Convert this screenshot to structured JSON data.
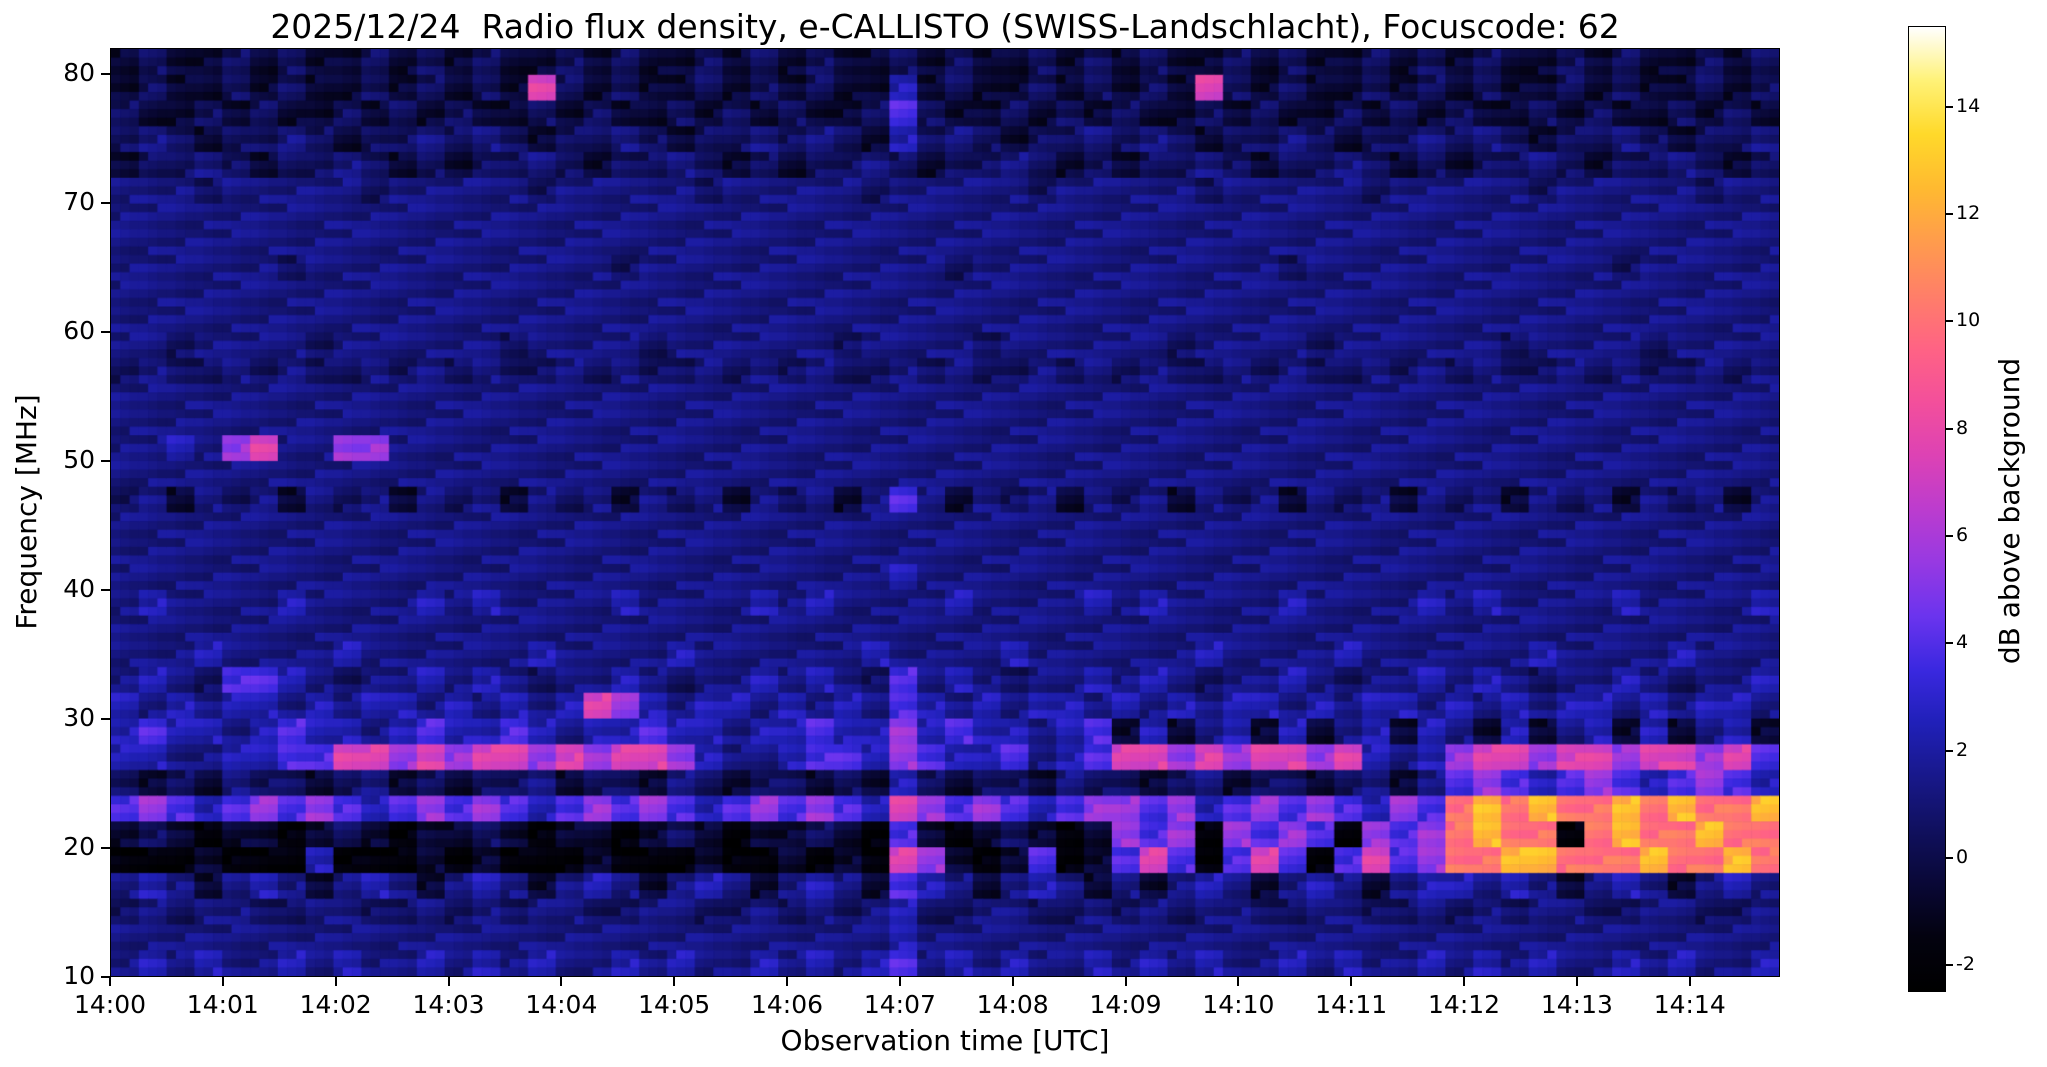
{
  "title": "2025/12/24  Radio flux density, e-CALLISTO (SWISS-Landschlacht), Focuscode: 62",
  "colors": {
    "background": "#ffffff",
    "text": "#000000",
    "plot_background_blue": "#15156e"
  },
  "chart_data": {
    "type": "heatmap",
    "title": "2025/12/24  Radio flux density, e-CALLISTO (SWISS-Landschlacht), Focuscode: 62",
    "xlabel": "Observation time [UTC]",
    "ylabel": "Frequency [MHz]",
    "x_ticks": [
      "14:00",
      "14:01",
      "14:02",
      "14:03",
      "14:04",
      "14:05",
      "14:06",
      "14:07",
      "14:08",
      "14:09",
      "14:10",
      "14:11",
      "14:12",
      "14:13",
      "14:14"
    ],
    "x_range_minutes": [
      0,
      14.8
    ],
    "y_ticks": [
      80,
      70,
      60,
      50,
      40,
      30,
      20,
      10
    ],
    "y_range_mhz": [
      10,
      82
    ],
    "grid": "off",
    "legend": "none",
    "colorbar": {
      "label": "dB above background",
      "ticks": [
        14,
        12,
        10,
        8,
        6,
        4,
        2,
        0,
        -2
      ],
      "range": [
        -2.5,
        15.5
      ],
      "position": "right",
      "colormap_stops": [
        {
          "v": -2.5,
          "c": "#000000"
        },
        {
          "v": -1.5,
          "c": "#03020f"
        },
        {
          "v": -0.5,
          "c": "#090836"
        },
        {
          "v": 0.5,
          "c": "#10105e"
        },
        {
          "v": 1.5,
          "c": "#18188a"
        },
        {
          "v": 2.5,
          "c": "#2020b8"
        },
        {
          "v": 3.5,
          "c": "#3a28e0"
        },
        {
          "v": 4.5,
          "c": "#6b34ee"
        },
        {
          "v": 5.5,
          "c": "#9739e2"
        },
        {
          "v": 6.5,
          "c": "#bc3cce"
        },
        {
          "v": 7.5,
          "c": "#dd42b4"
        },
        {
          "v": 8.5,
          "c": "#f34f9b"
        },
        {
          "v": 9.5,
          "c": "#ff6384"
        },
        {
          "v": 10.5,
          "c": "#ff7f68"
        },
        {
          "v": 11.5,
          "c": "#ff9c4c"
        },
        {
          "v": 12.5,
          "c": "#ffba30"
        },
        {
          "v": 13.5,
          "c": "#ffd92a"
        },
        {
          "v": 14.5,
          "c": "#fff277"
        },
        {
          "v": 15.5,
          "c": "#ffffff"
        }
      ]
    },
    "value_map": {
      "0": -2.0,
      "1": -0.6,
      "2": 0.5,
      "3": 1.3,
      "4": 2.4,
      "5": 3.8,
      "6": 5.5,
      "7": 7.5,
      "8": 10.0,
      "9": 12.5
    },
    "grid_notes": "Rows top(82 MHz) to bottom(10 MHz), 2 MHz per row; 60 time columns of ~14.8 s spanning 14:00-14:14.8 UTC. Digits map to dB via value_map. Features: quiet blue background ~1 dB; dark speckled band 72-82 MHz with pink point bursts at 14:03.8 and 14:09.7 (~78-79 MHz); faint vertical enhancement at 14:07 across all frequencies; pink dashes near 50-51 MHz at 14:01-14:02; strong RFI bands 16-32 MHz with magenta/pink dashes at 26-28 and 22-24 MHz; black absorption bands 19-21 and 24-26 MHz; bright orange-pink activity 18-24 MHz after 14:12.",
    "grid_rows_top_to_bottom": [
      "121121211212121121211212121121211212121121211212121121211212",
      "121121211212121721211212121141211212121721211212121121211212",
      "211212112121211212112121211252112121211212112121211212112121",
      "232122321223232122321223232142321223232122321223232122321223",
      "122321223212122321223212122321223212122321223212122321223212",
      "333233333233333233333233333233333233333233333233333233333233",
      "333333333333333333333333333333333333333333333333333333333333",
      "333333333333333333333333333333333333333333333333333333333333",
      "333333233333333333233333333333233333333333233333333333233333",
      "333333333333333333333333333333333333333333333333333333333333",
      "333333333333333333333333333333333333333333333333333333333333",
      "332333323333332333323333332333323333332333323333332333323333",
      "232232322323232232322323232232322323232232322323232232322323",
      "333333333333333333333333333333333333333333333333333333333333",
      "333333333333333333333333333333333333333333333333333333333333",
      "334367336633333333333333333333333333333333333333333333333333",
      "333333333333333333333333333333333333333333333333333333333333",
      "231323132313231323132313231353132313231323132313231323132313",
      "333333333333333333333333333333333333333333333333333333333333",
      "333333333333333333333333333333333333333333333333333333333333",
      "333333333333333333333333333343333333333333333333333333333333",
      "343333433334343333433334343333433334343333433334343333433334",
      "333333333333333333333333333333333333333333333333333333333333",
      "333433334333333433334333333433334333333433334333333433334333",
      "343255432334343233432334343253432334343233432334343233432334",
      "434344343443434347643443434354343443434344343443434344343443",
      "454434544345445434454434454464544345141341413414314134141341",
      "443344557767677676776433455465445345776767767434677677677675",
      "212132212312122312213212212142122132212312212313565456545654",
      "565456565456565456565456565476565456656456565465898988989889",
      "121011012101121011012101121051012101656065650656898808988988",
      "000100040001010001000100101076101501575057505756889988898898",
      "343134313431343134313431343154313431313431343134434313431343",
      "232332233223232332233223232342233223232332233223232332233223",
      "333333333333333333333333333343333333333333333333333333333333",
      "343433434334343433434334343453434334343433434334343433434334"
    ]
  }
}
